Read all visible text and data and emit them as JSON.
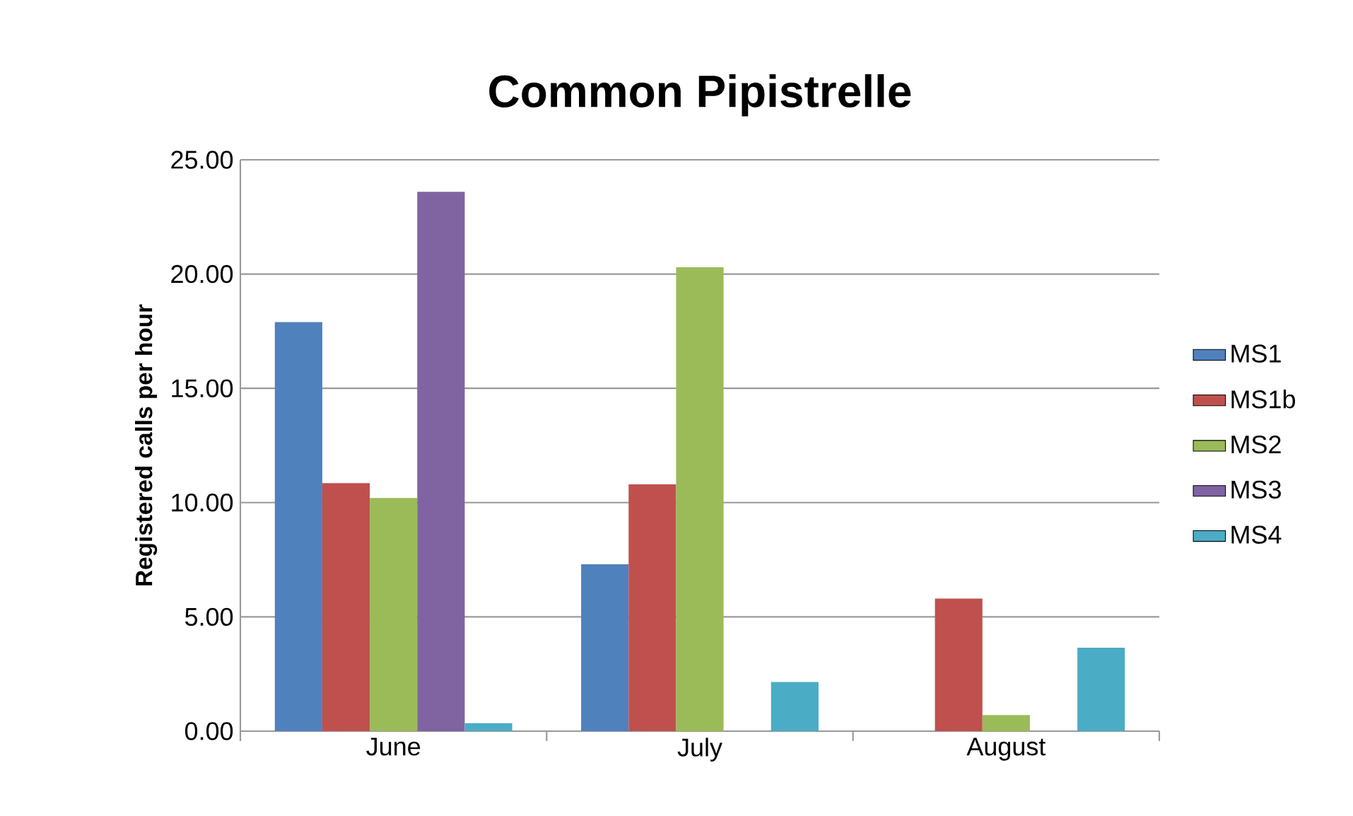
{
  "chart_data": {
    "type": "bar",
    "title": "Common Pipistrelle",
    "ylabel": "Registered calls per hour",
    "categories": [
      "June",
      "July",
      "August"
    ],
    "series": [
      {
        "name": "MS1",
        "color": "#4f81bd",
        "values": [
          17.9,
          7.3,
          null
        ]
      },
      {
        "name": "MS1b",
        "color": "#c0504d",
        "values": [
          10.85,
          10.8,
          5.8
        ]
      },
      {
        "name": "MS2",
        "color": "#9bbb59",
        "values": [
          10.2,
          20.3,
          0.7
        ]
      },
      {
        "name": "MS3",
        "color": "#8064a2",
        "values": [
          23.6,
          null,
          null
        ]
      },
      {
        "name": "MS4",
        "color": "#4bacc6",
        "values": [
          0.35,
          2.15,
          3.65
        ]
      }
    ],
    "ylim": [
      0,
      25
    ],
    "yticks": [
      {
        "value": 0,
        "label": "0.00"
      },
      {
        "value": 5,
        "label": "5.00"
      },
      {
        "value": 10,
        "label": "10.00"
      },
      {
        "value": 15,
        "label": "15.00"
      },
      {
        "value": 20,
        "label": "20.00"
      },
      {
        "value": 25,
        "label": "25.00"
      }
    ],
    "grid": "y",
    "legend": "right"
  }
}
